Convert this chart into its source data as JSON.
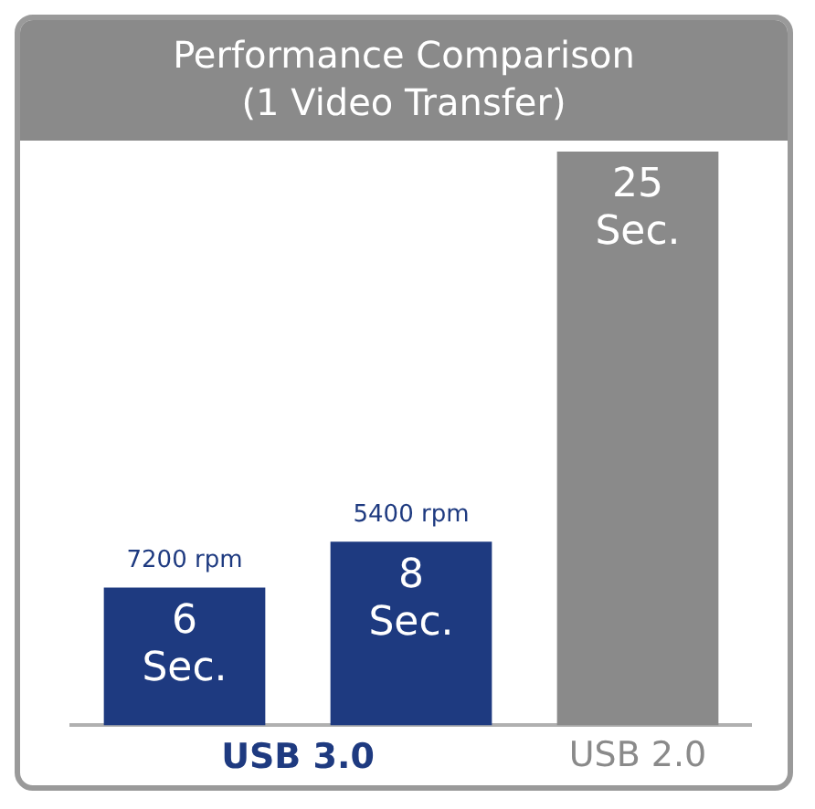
{
  "chart_data": {
    "type": "bar",
    "title": "Performance Comparison\n(1 Video Transfer)",
    "categories": [
      null,
      null,
      "USB 2.0"
    ],
    "values": [
      6,
      8,
      25
    ],
    "colors": [
      "#1e3a80",
      "#1e3a80",
      "#8a8a8a"
    ],
    "value_labels": [
      "6\nSec.",
      "8\nSec.",
      "25\nSec."
    ],
    "annotations": [
      {
        "text": "7200 rpm",
        "y": 6
      },
      {
        "text": "5400 rpm",
        "y": 8
      },
      "USB 3.0"
    ],
    "grid": false,
    "legend": false
  }
}
